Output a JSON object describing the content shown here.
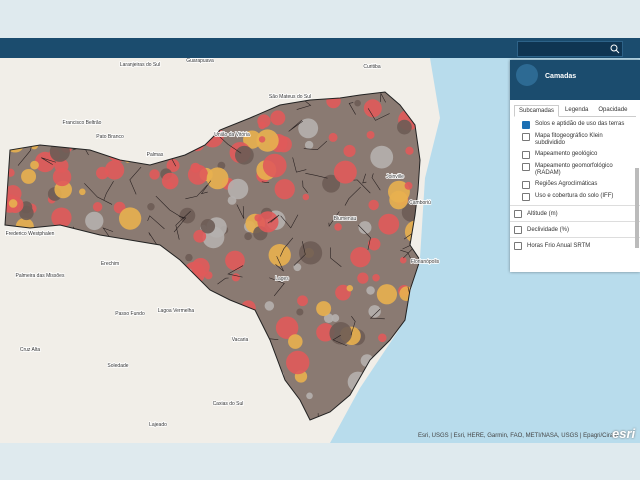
{
  "map": {
    "labels": [
      "Laranjeiras do Sul",
      "Guarapuava",
      "Curitiba",
      "São Mateus do Sul",
      "União da Vitória",
      "Francisco Beltrão",
      "Pato Branco",
      "Palmas",
      "Joinville",
      "Blumenau",
      "Camboriú",
      "Florianópolis",
      "Frederico Westphalen",
      "Erechim",
      "Palmeira das Missões",
      "Passo Fundo",
      "Lagoa Vermelha",
      "Vacaria",
      "Soledade",
      "Cruz Alta",
      "Caxias do Sul",
      "Lajeado",
      "Lages"
    ]
  },
  "panel": {
    "title": "Camadas",
    "tabs": [
      "Subcamadas",
      "Legenda",
      "Opacidade"
    ],
    "sublayers": [
      {
        "label": "Solos e aptidão de uso das terras",
        "checked": true
      },
      {
        "label": "Mapa fitogeográfico Klein subdividido",
        "checked": false
      },
      {
        "label": "Mapeamento geológico",
        "checked": false
      },
      {
        "label": "Mapeamento geomorfológico (RADAM)",
        "checked": false
      },
      {
        "label": "Regiões Agroclimáticas",
        "checked": false
      },
      {
        "label": "Uso e cobertura do solo (IFF)",
        "checked": false
      }
    ],
    "layers": [
      {
        "label": "Altitude (m)",
        "checked": false
      },
      {
        "label": "Declividade (%)",
        "checked": false
      },
      {
        "label": "Horas Frio Anual SRTM",
        "checked": false
      }
    ]
  },
  "attribution": "Esri, USGS | Esri, HERE, Garmin, FAO, METI/NASA, USGS | Epagri/Ciram",
  "logo": "esri"
}
